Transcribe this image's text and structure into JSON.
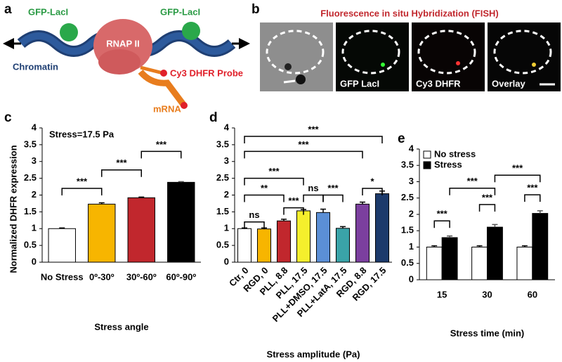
{
  "panel_labels": [
    "a",
    "b",
    "c",
    "d",
    "e"
  ],
  "schematic": {
    "lacI_left": "GFP-LacI",
    "lacI_right": "GFP-LacI",
    "polymerase": "RNAP II",
    "chromatin": "Chromatin",
    "probe": "Cy3 DHFR Probe",
    "mrna": "mRNA"
  },
  "microscopy": {
    "title": "Fluorescence in situ Hybridization (FISH)",
    "channels": [
      "GFP LacI",
      "Cy3 DHFR",
      "Overlay"
    ]
  },
  "chart_data": [
    {
      "type": "bar",
      "ylabel": "Normalized DHFR expression",
      "xlabel": "Stress angle",
      "annotation": "Stress=17.5 Pa",
      "categories": [
        "No Stress",
        "0º-30º",
        "30º-60º",
        "60º-90º"
      ],
      "values": [
        1,
        1.73,
        1.92,
        2.38
      ],
      "errors": [
        0.02,
        0.04,
        0.02,
        0.02
      ],
      "colors": [
        "#ffffff",
        "#f7b500",
        "#c1272d",
        "#000000"
      ],
      "ylim": [
        0,
        4
      ],
      "yticks": [
        0,
        0.5,
        1,
        1.5,
        2,
        2.5,
        3,
        3.5,
        4
      ],
      "brackets": [
        {
          "bars": [
            0,
            1
          ],
          "y": 2.2,
          "label": "***"
        },
        {
          "bars": [
            1,
            2
          ],
          "y": 2.75,
          "label": "***"
        },
        {
          "bars": [
            2,
            3
          ],
          "y": 3.3,
          "label": "***"
        }
      ]
    },
    {
      "type": "bar",
      "xlabel": "Stress amplitude (Pa)",
      "categories": [
        "Ctr, 0",
        "RGD, 0",
        "PLL, 8.8",
        "PLL, 17.5",
        "PLL+DMSO, 17.5",
        "PLL+LatA, 17.5",
        "RGD, 8.8",
        "RGD, 17.5"
      ],
      "values": [
        1,
        0.99,
        1.23,
        1.53,
        1.48,
        1.01,
        1.73,
        2.04
      ],
      "errors": [
        0.02,
        0.03,
        0.05,
        0.04,
        0.1,
        0.05,
        0.06,
        0.08
      ],
      "colors": [
        "#ffffff",
        "#f7b500",
        "#c1272d",
        "#f5ef2c",
        "#5b8fd6",
        "#3aa3a8",
        "#7b3f9e",
        "#1c3a6b"
      ],
      "xtick_rotation": 45,
      "ylim": [
        0,
        4
      ],
      "yticks": [
        0,
        0.5,
        1,
        1.5,
        2,
        2.5,
        3,
        3.5,
        4
      ],
      "brackets": [
        {
          "bars": [
            0,
            1
          ],
          "y": 1.2,
          "label": "ns"
        },
        {
          "bars": [
            0,
            2
          ],
          "y": 2.0,
          "label": "**"
        },
        {
          "bars": [
            2,
            3
          ],
          "y": 1.62,
          "label": "***"
        },
        {
          "bars": [
            3,
            4
          ],
          "y": 2.0,
          "label": "ns"
        },
        {
          "bars": [
            4,
            5
          ],
          "y": 2.0,
          "label": "***"
        },
        {
          "bars": [
            6,
            7
          ],
          "y": 2.2,
          "label": "*"
        },
        {
          "bars": [
            0,
            3
          ],
          "y": 2.5,
          "label": "***"
        },
        {
          "bars": [
            0,
            6
          ],
          "y": 3.3,
          "label": "***"
        },
        {
          "bars": [
            0,
            7
          ],
          "y": 3.75,
          "label": "***"
        }
      ]
    },
    {
      "type": "grouped-bar",
      "xlabel": "Stress time (min)",
      "categories": [
        "15",
        "30",
        "60"
      ],
      "series": [
        {
          "name": "No stress",
          "color": "#ffffff",
          "values": [
            1,
            1,
            1
          ],
          "errors": [
            0.04,
            0.04,
            0.04
          ]
        },
        {
          "name": "Stress",
          "color": "#000000",
          "values": [
            1.29,
            1.61,
            2.03
          ],
          "errors": [
            0.05,
            0.08,
            0.08
          ]
        }
      ],
      "legend": "upper left",
      "ylim": [
        0,
        4
      ],
      "yticks": [
        0,
        0.5,
        1,
        1.5,
        2,
        2.5,
        3,
        3.5,
        4
      ],
      "brackets": [
        {
          "bars": [
            [
              0,
              0
            ],
            [
              0,
              1
            ]
          ],
          "y": 1.8,
          "label": "***"
        },
        {
          "bars": [
            [
              1,
              0
            ],
            [
              1,
              1
            ]
          ],
          "y": 2.3,
          "label": "***"
        },
        {
          "bars": [
            [
              2,
              0
            ],
            [
              2,
              1
            ]
          ],
          "y": 2.6,
          "label": "***"
        },
        {
          "bars": [
            [
              0,
              1
            ],
            [
              1,
              1
            ]
          ],
          "y": 2.8,
          "label": "***"
        },
        {
          "bars": [
            [
              1,
              1
            ],
            [
              2,
              1
            ]
          ],
          "y": 3.2,
          "label": "***"
        }
      ]
    }
  ]
}
